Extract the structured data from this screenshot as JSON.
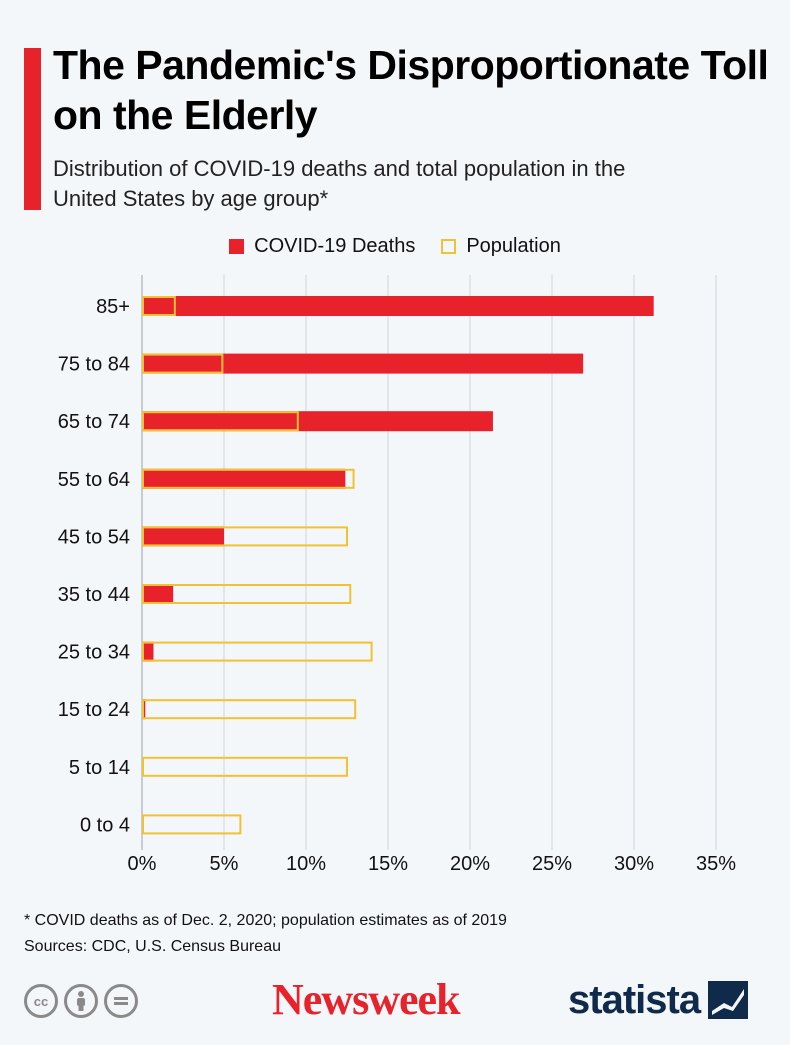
{
  "title": "The Pandemic's Disproportionate Toll on the Elderly",
  "subtitle": "Distribution of COVID-19 deaths and total population in the United States by age group*",
  "footnote": "* COVID deaths as of Dec. 2, 2020; population estimates as of 2019",
  "sources": "Sources: CDC, U.S. Census Bureau",
  "logos": {
    "newsweek": "Newsweek",
    "statista": "statista"
  },
  "colors": {
    "accent": "#e8222b",
    "deaths": "#e8222b",
    "population_outline": "#f1c232",
    "grid": "#cfd4d9",
    "statista_navy": "#0f2a4a"
  },
  "icons": [
    "cc-icon",
    "attribution-icon",
    "no-derivatives-icon",
    "statista-mark-icon"
  ],
  "chart_data": {
    "type": "bar",
    "orientation": "horizontal",
    "categories": [
      "85+",
      "75 to 84",
      "65 to 74",
      "55 to 64",
      "45 to 54",
      "35 to 44",
      "25 to 34",
      "15 to 24",
      "5 to 14",
      "0 to 4"
    ],
    "series": [
      {
        "name": "COVID-19 Deaths",
        "values": [
          31.2,
          26.9,
          21.4,
          12.4,
          5.0,
          1.9,
          0.7,
          0.2,
          0.0,
          0.0
        ]
      },
      {
        "name": "Population",
        "values": [
          2.0,
          4.9,
          9.5,
          12.9,
          12.5,
          12.7,
          14.0,
          13.0,
          12.5,
          6.0
        ]
      }
    ],
    "xlim": [
      0,
      35
    ],
    "xticks": [
      "0%",
      "5%",
      "10%",
      "15%",
      "20%",
      "25%",
      "30%",
      "35%"
    ],
    "xtick_values": [
      0,
      5,
      10,
      15,
      20,
      25,
      30,
      35
    ],
    "grid": true,
    "legend": "top-center"
  }
}
